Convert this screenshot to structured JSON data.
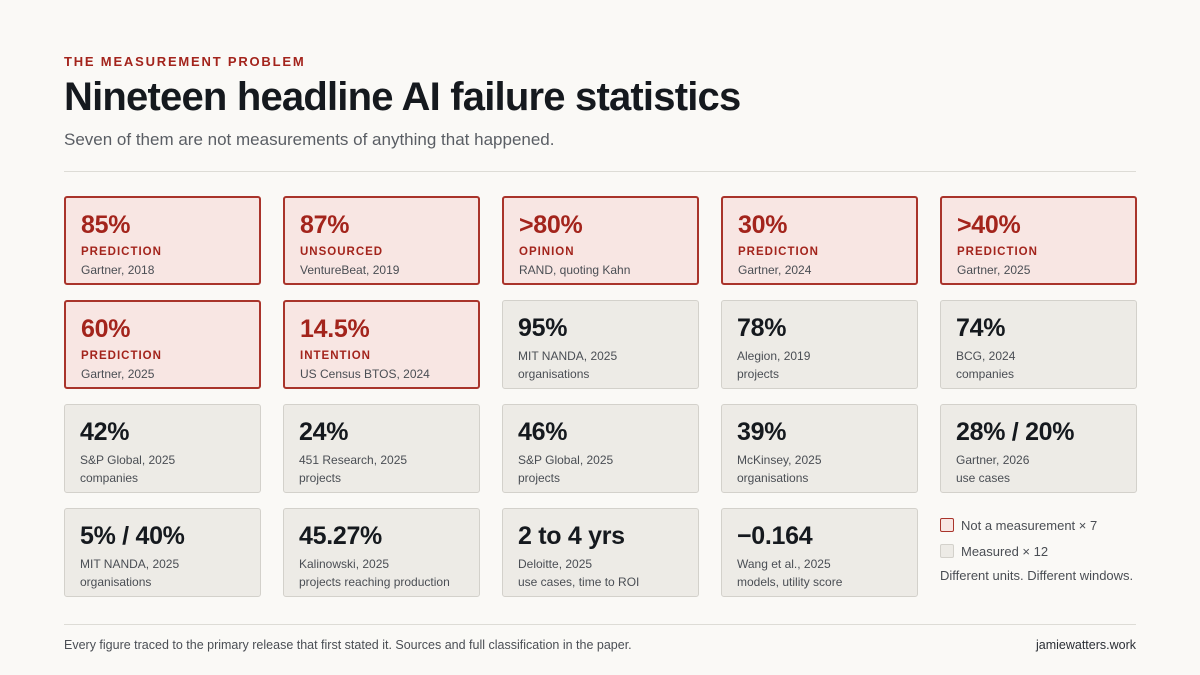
{
  "header": {
    "eyebrow": "THE MEASUREMENT PROBLEM",
    "title": "Nineteen headline AI failure statistics",
    "subtitle": "Seven of them are not measurements of anything that happened."
  },
  "colors": {
    "accent": "#a3241c",
    "flag_fill": "#f8e6e3",
    "flag_border": "#a9342b",
    "measured_fill": "#edebe6",
    "measured_border": "#d3d1cb",
    "background": "#faf9f6"
  },
  "cards": [
    {
      "kind": "flag",
      "value": "85%",
      "tag": "PREDICTION",
      "source": "Gartner, 2018"
    },
    {
      "kind": "flag",
      "value": "87%",
      "tag": "UNSOURCED",
      "source": "VentureBeat, 2019"
    },
    {
      "kind": "flag",
      "value": ">80%",
      "tag": "OPINION",
      "source": "RAND, quoting Kahn"
    },
    {
      "kind": "flag",
      "value": "30%",
      "tag": "PREDICTION",
      "source": "Gartner, 2024"
    },
    {
      "kind": "flag",
      "value": ">40%",
      "tag": "PREDICTION",
      "source": "Gartner, 2025"
    },
    {
      "kind": "flag",
      "value": "60%",
      "tag": "PREDICTION",
      "source": "Gartner, 2025"
    },
    {
      "kind": "flag",
      "value": "14.5%",
      "tag": "INTENTION",
      "source": "US Census BTOS, 2024"
    },
    {
      "kind": "measured",
      "value": "95%",
      "source": "MIT NANDA, 2025",
      "unit": "organisations"
    },
    {
      "kind": "measured",
      "value": "78%",
      "source": "Alegion, 2019",
      "unit": "projects"
    },
    {
      "kind": "measured",
      "value": "74%",
      "source": "BCG, 2024",
      "unit": "companies"
    },
    {
      "kind": "measured",
      "value": "42%",
      "source": "S&P Global, 2025",
      "unit": "companies"
    },
    {
      "kind": "measured",
      "value": "24%",
      "source": "451 Research, 2025",
      "unit": "projects"
    },
    {
      "kind": "measured",
      "value": "46%",
      "source": "S&P Global, 2025",
      "unit": "projects"
    },
    {
      "kind": "measured",
      "value": "39%",
      "source": "McKinsey, 2025",
      "unit": "organisations"
    },
    {
      "kind": "measured",
      "value": "28% / 20%",
      "source": "Gartner, 2026",
      "unit": "use cases"
    },
    {
      "kind": "measured",
      "value": "5% / 40%",
      "source": "MIT NANDA, 2025",
      "unit": "organisations"
    },
    {
      "kind": "measured",
      "value": "45.27%",
      "source": "Kalinowski, 2025",
      "unit": "projects reaching production"
    },
    {
      "kind": "measured",
      "value": "2 to 4 yrs",
      "source": "Deloitte, 2025",
      "unit": "use cases, time to ROI"
    },
    {
      "kind": "measured",
      "value": "−0.164",
      "source": "Wang et al., 2025",
      "unit": "models, utility score"
    }
  ],
  "legend": {
    "flag_label": "Not a measurement × 7",
    "measured_label": "Measured × 12",
    "note": "Different units. Different windows."
  },
  "footer": {
    "note": "Every figure traced to the primary release that first stated it. Sources and full classification in the paper.",
    "site": "jamiewatters.work"
  }
}
